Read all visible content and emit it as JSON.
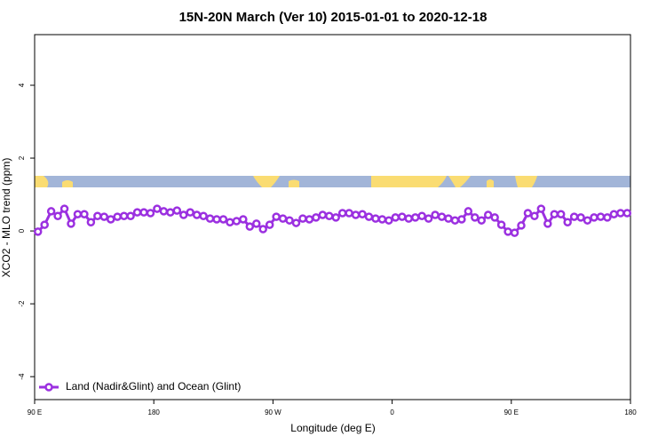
{
  "chart_data": {
    "type": "line",
    "title": "15N-20N March (Ver 10)   2015-01-01 to 2020-12-18",
    "x_label": "Longitude (deg E)",
    "y_label": "XCO2 - MLO trend (ppm)",
    "xlim": [
      90,
      540
    ],
    "ylim": [
      -4.63,
      5.39
    ],
    "xticks": [
      {
        "value": 90,
        "label": "90 E"
      },
      180,
      {
        "value": 270,
        "label": "90 W"
      },
      0,
      {
        "value": 450,
        "label": "90 E"
      },
      {
        "value": 540,
        "label": "180"
      }
    ],
    "yticks": [
      -4,
      -2,
      0,
      2,
      4
    ],
    "legend": "bottom-left",
    "series": [
      {
        "name": "Land (Nadir&Glint) and Ocean (Glint)",
        "color": "#9b30e0",
        "x": [
          92.5,
          97.5,
          102.5,
          107.5,
          112.5,
          117.5,
          122.5,
          127.5,
          132.5,
          137.5,
          142.5,
          147.5,
          152.5,
          157.5,
          162.5,
          167.5,
          172.5,
          177.5,
          182.5,
          187.5,
          192.5,
          197.5,
          202.5,
          207.5,
          212.5,
          217.5,
          222.5,
          227.5,
          232.5,
          237.5,
          242.5,
          247.5,
          252.5,
          257.5,
          262.5,
          267.5,
          272.5,
          277.5,
          282.5,
          287.5,
          292.5,
          297.5,
          302.5,
          307.5,
          312.5,
          317.5,
          322.5,
          327.5,
          332.5,
          337.5,
          342.5,
          347.5,
          352.5,
          357.5,
          362.5,
          367.5,
          372.5,
          377.5,
          382.5,
          387.5,
          392.5,
          397.5,
          402.5,
          407.5,
          412.5,
          417.5,
          422.5,
          427.5,
          432.5,
          437.5,
          442.5,
          447.5,
          452.5,
          457.5,
          462.5,
          467.5,
          472.5,
          477.5,
          482.5,
          487.5,
          492.5,
          497.5,
          502.5,
          507.5,
          512.5,
          517.5,
          522.5,
          527.5,
          532.5,
          537.5
        ],
        "values": [
          -0.02,
          0.17,
          0.54,
          0.41,
          0.61,
          0.2,
          0.46,
          0.46,
          0.24,
          0.41,
          0.39,
          0.32,
          0.39,
          0.41,
          0.41,
          0.51,
          0.51,
          0.49,
          0.61,
          0.54,
          0.51,
          0.56,
          0.44,
          0.51,
          0.44,
          0.41,
          0.34,
          0.32,
          0.32,
          0.24,
          0.27,
          0.32,
          0.12,
          0.2,
          0.05,
          0.17,
          0.39,
          0.34,
          0.29,
          0.22,
          0.34,
          0.32,
          0.37,
          0.44,
          0.41,
          0.37,
          0.49,
          0.49,
          0.44,
          0.46,
          0.39,
          0.34,
          0.32,
          0.29,
          0.37,
          0.39,
          0.34,
          0.37,
          0.41,
          0.34,
          0.44,
          0.39,
          0.34,
          0.29,
          0.32,
          0.54,
          0.37,
          0.29,
          0.44,
          0.37,
          0.17,
          -0.02,
          -0.05,
          0.15,
          0.49,
          0.41,
          0.61,
          0.2,
          0.46,
          0.46,
          0.24,
          0.39,
          0.37,
          0.29,
          0.37,
          0.39,
          0.37,
          0.46,
          0.49,
          0.49
        ]
      }
    ]
  }
}
